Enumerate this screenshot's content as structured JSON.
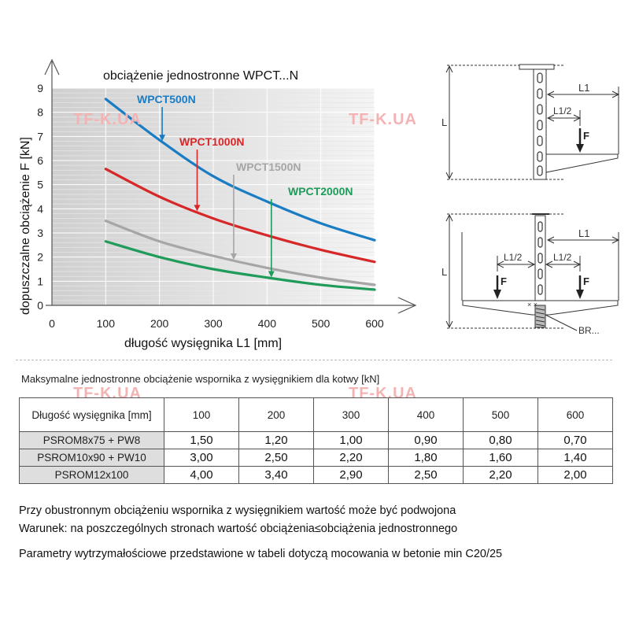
{
  "watermark": "TF-K.UA",
  "chart_data": {
    "type": "line",
    "title": "obciążenie jednostronne WPCT...N",
    "xlabel": "długość wysięgnika L1 [mm]",
    "ylabel": "dopuszczalne obciążenie F [kN]",
    "xlim": [
      0,
      600
    ],
    "ylim": [
      0,
      9
    ],
    "x_ticks": [
      "0",
      "100",
      "200",
      "300",
      "400",
      "500",
      "600"
    ],
    "y_ticks": [
      "0",
      "1",
      "2",
      "3",
      "4",
      "5",
      "6",
      "7",
      "8",
      "9"
    ],
    "grid": true,
    "x": [
      100,
      200,
      300,
      400,
      500,
      600
    ],
    "series": [
      {
        "name": "WPCT500N",
        "color": "#1a7dc4",
        "values": [
          8.55,
          6.85,
          5.35,
          4.3,
          3.4,
          2.7
        ],
        "arrow_x": 205
      },
      {
        "name": "WPCT1000N",
        "color": "#d62828",
        "values": [
          5.65,
          4.5,
          3.6,
          2.9,
          2.3,
          1.8
        ],
        "arrow_x": 270
      },
      {
        "name": "WPCT1500N",
        "color": "#a6a6a6",
        "values": [
          3.5,
          2.65,
          2.05,
          1.55,
          1.15,
          0.85
        ],
        "arrow_x": 338
      },
      {
        "name": "WPCT2000N",
        "color": "#1f9b5a",
        "values": [
          2.65,
          2.0,
          1.5,
          1.15,
          0.85,
          0.65
        ],
        "arrow_x": 408
      }
    ]
  },
  "diagram": {
    "top": {
      "L": "L",
      "L1": "L1",
      "L1_half": "L1/2",
      "F": "F"
    },
    "bottom": {
      "L": "L",
      "L1": "L1",
      "L1_half_left": "L1/2",
      "L1_half_right": "L1/2",
      "F_left": "F",
      "F_right": "F",
      "BR": "BR..."
    }
  },
  "table": {
    "caption": "Maksymalne jednostronne obciążenie wspornika z wysięgnikiem dla kotwy [kN]",
    "header_label": "Długość wysięgnika [mm]",
    "columns": [
      "100",
      "200",
      "300",
      "400",
      "500",
      "600"
    ],
    "rows": [
      {
        "label": "PSROM8x75 + PW8",
        "values": [
          "1,50",
          "1,20",
          "1,00",
          "0,90",
          "0,80",
          "0,70"
        ]
      },
      {
        "label": "PSROM10x90 + PW10",
        "values": [
          "3,00",
          "2,50",
          "2,20",
          "1,80",
          "1,60",
          "1,40"
        ]
      },
      {
        "label": "PSROM12x100",
        "values": [
          "4,00",
          "3,40",
          "2,90",
          "2,50",
          "2,20",
          "2,00"
        ]
      }
    ]
  },
  "notes": [
    "Przy obustronnym obciążeniu wspornika z wysięgnikiem wartość może być podwojona",
    "Warunek: na poszczególnych stronach wartość obciążenia≤obciążenia jednostronnego",
    "Parametry wytrzymałościowe przedstawione w tabeli dotyczą mocowania w betonie min C20/25"
  ]
}
